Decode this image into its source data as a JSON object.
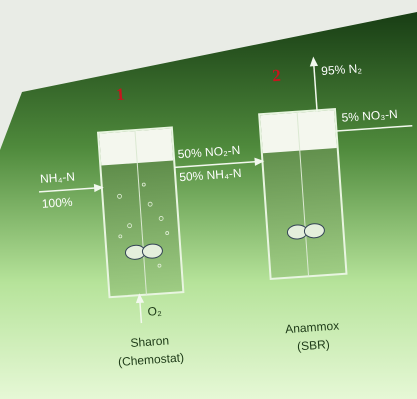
{
  "reactors": [
    {
      "number": "1",
      "name": "Sharon",
      "mode": "(Chemostat)"
    },
    {
      "number": "2",
      "name": "Anammox",
      "mode": "(SBR)"
    }
  ],
  "streams": {
    "influent": "NH₄-N",
    "influent_share": "100%",
    "intermediate_1": "50% NO₂-N",
    "intermediate_2": "50% NH₄-N",
    "gas": "95% N₂",
    "effluent": "5% NO₃-N",
    "aeration": "O₂"
  }
}
